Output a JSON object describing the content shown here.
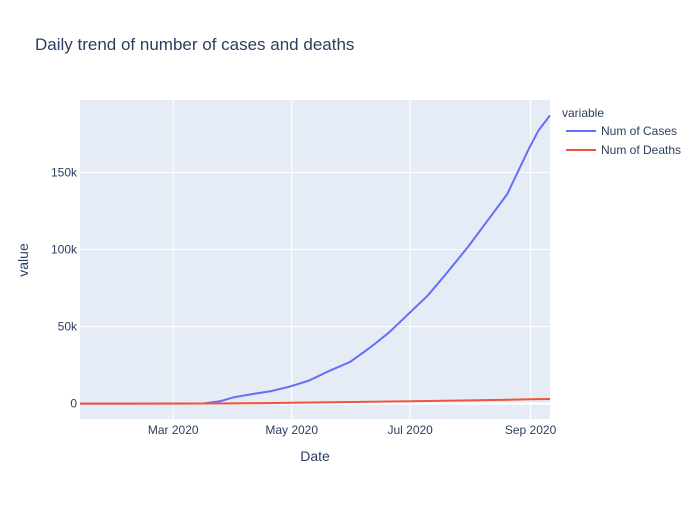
{
  "chart_data": {
    "type": "line",
    "title": "Daily trend of number of cases and deaths",
    "xlabel": "Date",
    "ylabel": "value",
    "legend_title": "variable",
    "legend_position": "right",
    "grid": true,
    "x_range": [
      "2020-01-13",
      "2020-09-11"
    ],
    "ylim": [
      -10000,
      197000
    ],
    "x_ticks": [
      {
        "date": "2020-03-01",
        "label": "Mar 2020"
      },
      {
        "date": "2020-05-01",
        "label": "May 2020"
      },
      {
        "date": "2020-07-01",
        "label": "Jul 2020"
      },
      {
        "date": "2020-09-01",
        "label": "Sep 2020"
      }
    ],
    "y_ticks": [
      {
        "value": 0,
        "label": "0"
      },
      {
        "value": 50000,
        "label": "50k"
      },
      {
        "value": 100000,
        "label": "100k"
      },
      {
        "value": 150000,
        "label": "150k"
      }
    ],
    "series": [
      {
        "name": "Num of Cases",
        "color": "#636efa",
        "points": [
          [
            "2020-01-13",
            0
          ],
          [
            "2020-02-01",
            5
          ],
          [
            "2020-03-01",
            70
          ],
          [
            "2020-03-17",
            150
          ],
          [
            "2020-03-25",
            1500
          ],
          [
            "2020-04-01",
            4000
          ],
          [
            "2020-04-10",
            6000
          ],
          [
            "2020-04-20",
            8000
          ],
          [
            "2020-04-30",
            11000
          ],
          [
            "2020-05-10",
            15000
          ],
          [
            "2020-05-20",
            21000
          ],
          [
            "2020-05-31",
            27000
          ],
          [
            "2020-06-10",
            36000
          ],
          [
            "2020-06-20",
            46000
          ],
          [
            "2020-06-30",
            58000
          ],
          [
            "2020-07-10",
            70000
          ],
          [
            "2020-07-20",
            85000
          ],
          [
            "2020-07-31",
            102000
          ],
          [
            "2020-08-10",
            119000
          ],
          [
            "2020-08-20",
            136000
          ],
          [
            "2020-08-31",
            165000
          ],
          [
            "2020-09-05",
            177000
          ],
          [
            "2020-09-11",
            187000
          ]
        ]
      },
      {
        "name": "Num of Deaths",
        "color": "#ef553b",
        "points": [
          [
            "2020-01-13",
            0
          ],
          [
            "2020-03-01",
            20
          ],
          [
            "2020-04-01",
            150
          ],
          [
            "2020-05-01",
            500
          ],
          [
            "2020-06-01",
            1000
          ],
          [
            "2020-07-01",
            1500
          ],
          [
            "2020-08-01",
            2100
          ],
          [
            "2020-09-01",
            2800
          ],
          [
            "2020-09-11",
            3000
          ]
        ]
      }
    ]
  }
}
